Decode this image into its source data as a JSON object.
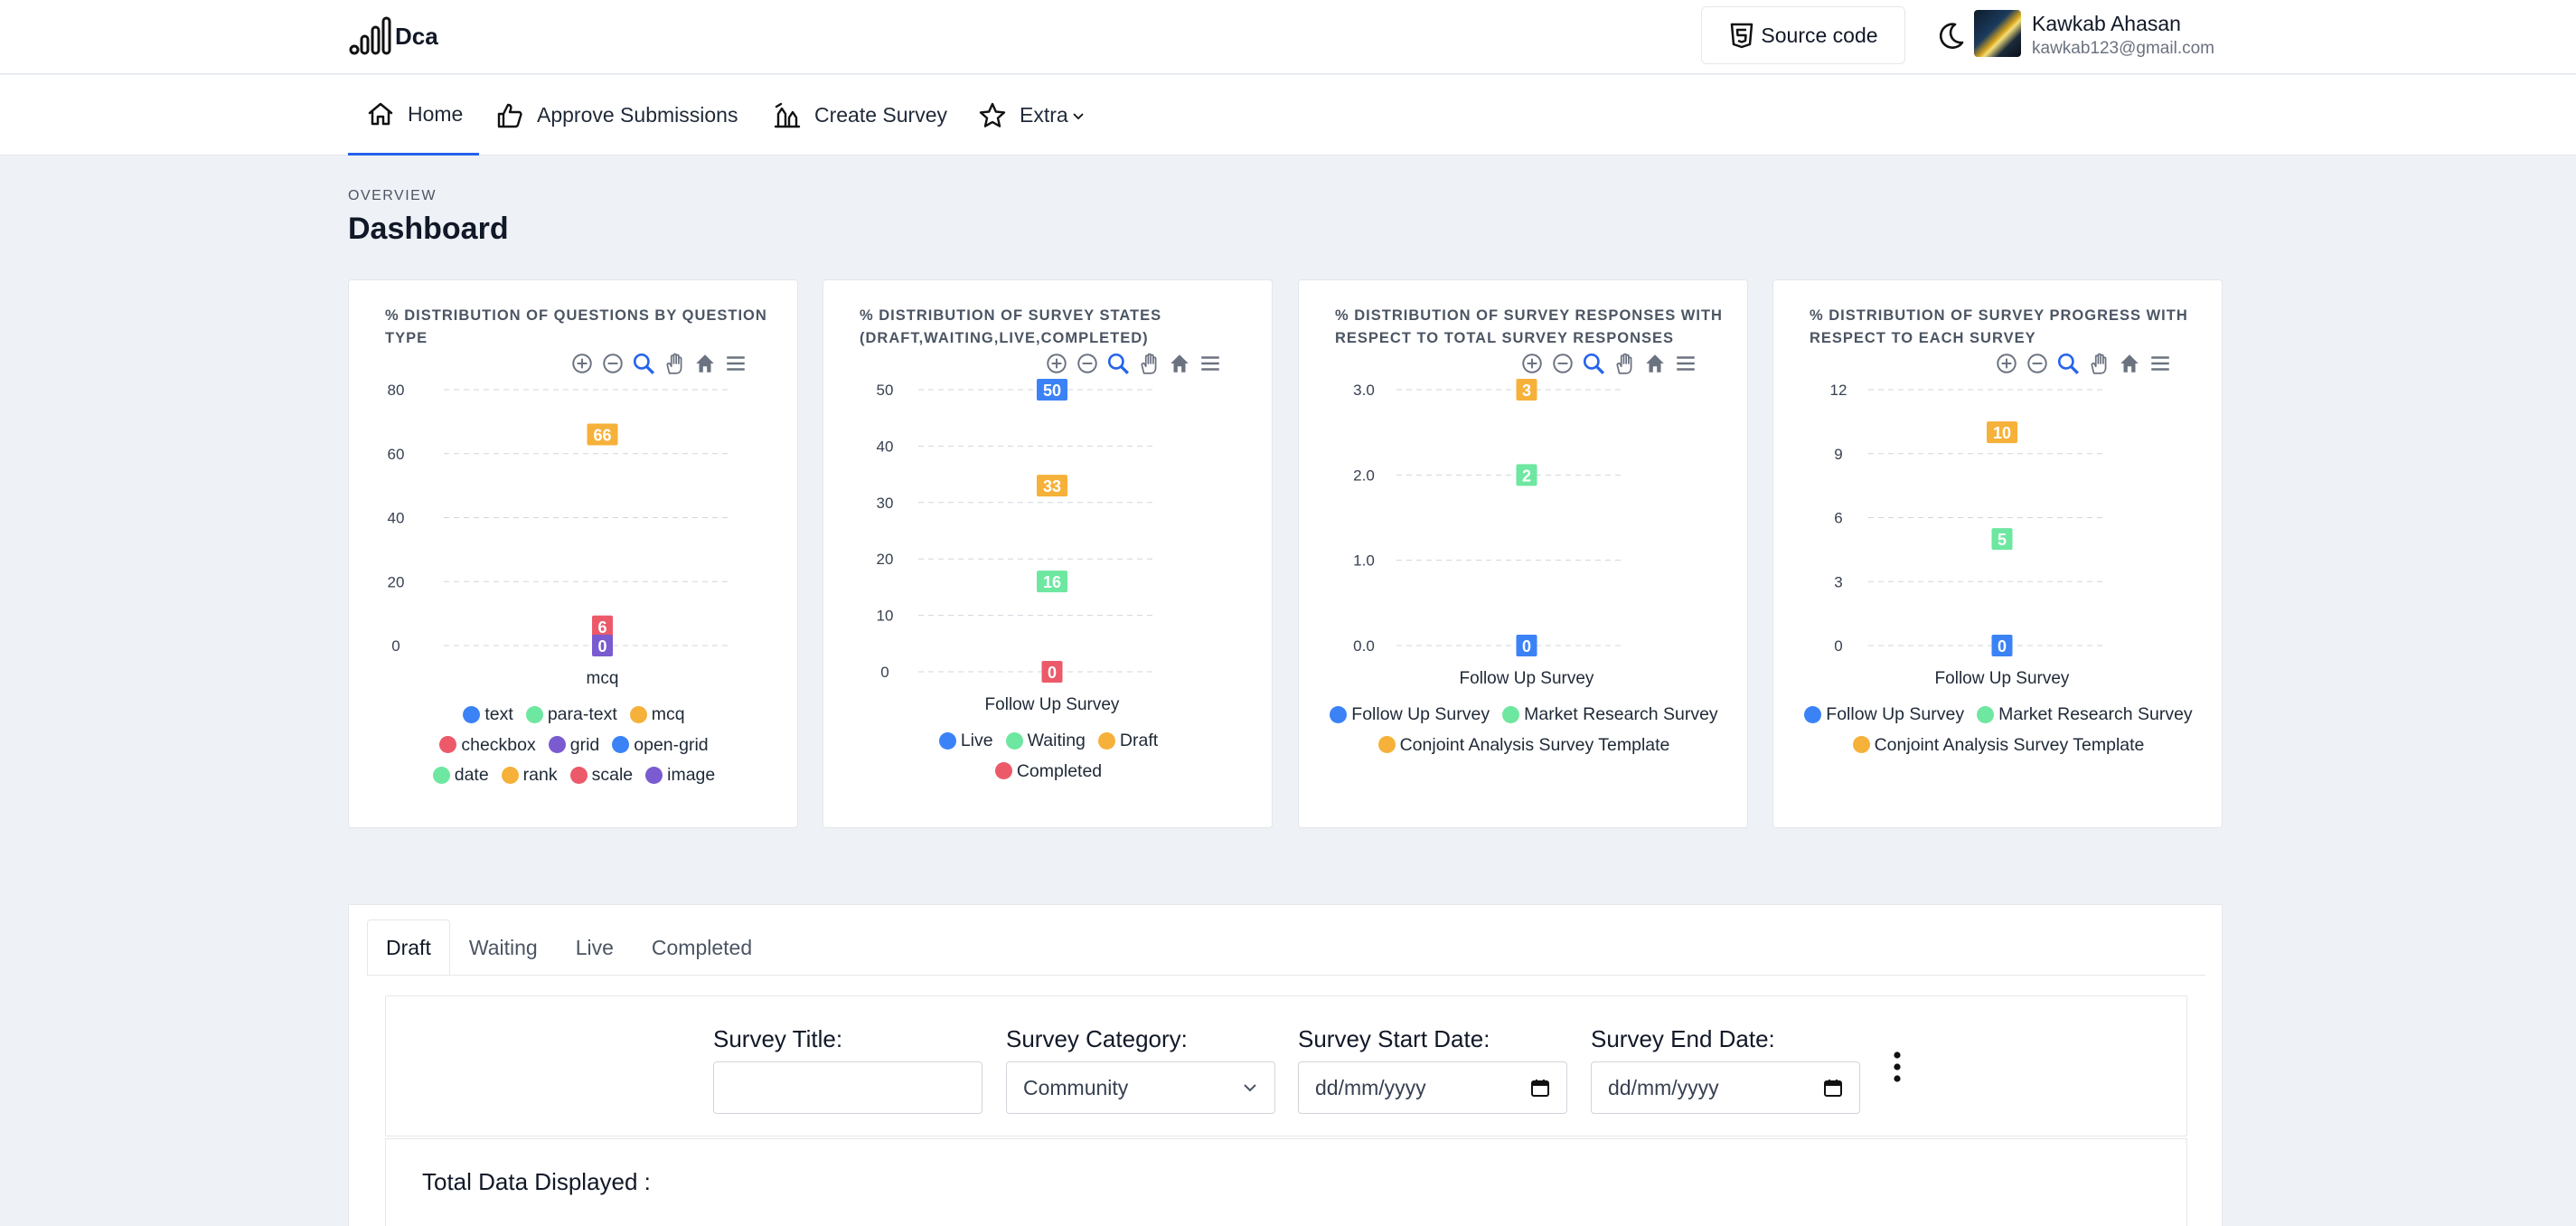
{
  "header": {
    "brand": "Dca",
    "source_button": "Source code",
    "user_name": "Kawkab Ahasan",
    "user_email": "kawkab123@gmail.com"
  },
  "nav": {
    "items": [
      {
        "label": "Home",
        "icon": "home-icon",
        "active": true
      },
      {
        "label": "Approve Submissions",
        "icon": "thumbs-up-icon",
        "active": false
      },
      {
        "label": "Create Survey",
        "icon": "create-survey-icon",
        "active": false
      },
      {
        "label": "Extra",
        "icon": "star-icon",
        "active": false
      }
    ]
  },
  "page": {
    "overline": "OVERVIEW",
    "title": "Dashboard"
  },
  "colors": {
    "blue": "#3b82f6",
    "green": "#6ee7a0",
    "orange": "#f6b13a",
    "red": "#ec5a6a",
    "purple": "#7a5bd0",
    "accent": "#2563eb"
  },
  "chart_data": [
    {
      "type": "bar",
      "title": "% DISTRIBUTION OF QUESTIONS BY QUESTION TYPE",
      "categories": [
        "mcq"
      ],
      "ylim": [
        0,
        80
      ],
      "yticks": [
        "0",
        "20",
        "40",
        "60",
        "80"
      ],
      "series": [
        {
          "name": "text",
          "color": "#3b82f6",
          "values": [
            null
          ]
        },
        {
          "name": "para-text",
          "color": "#6ee7a0",
          "values": [
            null
          ]
        },
        {
          "name": "mcq",
          "color": "#f6b13a",
          "values": [
            66
          ]
        },
        {
          "name": "checkbox",
          "color": "#ec5a6a",
          "values": [
            6
          ]
        },
        {
          "name": "grid",
          "color": "#7a5bd0",
          "values": [
            0
          ]
        },
        {
          "name": "open-grid",
          "color": "#3b82f6",
          "values": [
            null
          ]
        },
        {
          "name": "date",
          "color": "#6ee7a0",
          "values": [
            null
          ]
        },
        {
          "name": "rank",
          "color": "#f6b13a",
          "values": [
            null
          ]
        },
        {
          "name": "scale",
          "color": "#ec5a6a",
          "values": [
            null
          ]
        },
        {
          "name": "image",
          "color": "#7a5bd0",
          "values": [
            null
          ]
        }
      ],
      "grid": true
    },
    {
      "type": "bar",
      "title": "% DISTRIBUTION OF SURVEY STATES (DRAFT,WAITING,LIVE,COMPLETED)",
      "categories": [
        "Follow Up Survey"
      ],
      "ylim": [
        0,
        50
      ],
      "yticks": [
        "0",
        "10",
        "20",
        "30",
        "40",
        "50"
      ],
      "series": [
        {
          "name": "Live",
          "color": "#3b82f6",
          "values": [
            50
          ]
        },
        {
          "name": "Waiting",
          "color": "#6ee7a0",
          "values": [
            16
          ]
        },
        {
          "name": "Draft",
          "color": "#f6b13a",
          "values": [
            33
          ]
        },
        {
          "name": "Completed",
          "color": "#ec5a6a",
          "values": [
            0
          ]
        }
      ],
      "grid": true
    },
    {
      "type": "bar",
      "title": "% DISTRIBUTION OF SURVEY RESPONSES WITH RESPECT TO TOTAL SURVEY RESPONSES",
      "categories": [
        "Follow Up Survey"
      ],
      "ylim": [
        0,
        3
      ],
      "yticks": [
        "0.0",
        "1.0",
        "2.0",
        "3.0"
      ],
      "series": [
        {
          "name": "Follow Up Survey",
          "color": "#3b82f6",
          "values": [
            0
          ]
        },
        {
          "name": "Market Research Survey",
          "color": "#6ee7a0",
          "values": [
            2
          ]
        },
        {
          "name": "Conjoint Analysis Survey Template",
          "color": "#f6b13a",
          "values": [
            3
          ]
        }
      ],
      "grid": true
    },
    {
      "type": "bar",
      "title": "% DISTRIBUTION OF SURVEY PROGRESS WITH RESPECT TO EACH SURVEY",
      "categories": [
        "Follow Up Survey"
      ],
      "ylim": [
        0,
        12
      ],
      "yticks": [
        "0",
        "3",
        "6",
        "9",
        "12"
      ],
      "series": [
        {
          "name": "Follow Up Survey",
          "color": "#3b82f6",
          "values": [
            0
          ]
        },
        {
          "name": "Market Research Survey",
          "color": "#6ee7a0",
          "values": [
            5
          ]
        },
        {
          "name": "Conjoint Analysis Survey Template",
          "color": "#f6b13a",
          "values": [
            10
          ]
        }
      ],
      "grid": true
    }
  ],
  "tabs": [
    "Draft",
    "Waiting",
    "Live",
    "Completed"
  ],
  "filters": {
    "title_label": "Survey Title:",
    "title_value": "",
    "category_label": "Survey Category:",
    "category_value": "Community",
    "start_label": "Survey Start Date:",
    "start_placeholder": "dd/mm/yyyy",
    "end_label": "Survey End Date:",
    "end_placeholder": "dd/mm/yyyy"
  },
  "total_label": "Total Data Displayed :"
}
